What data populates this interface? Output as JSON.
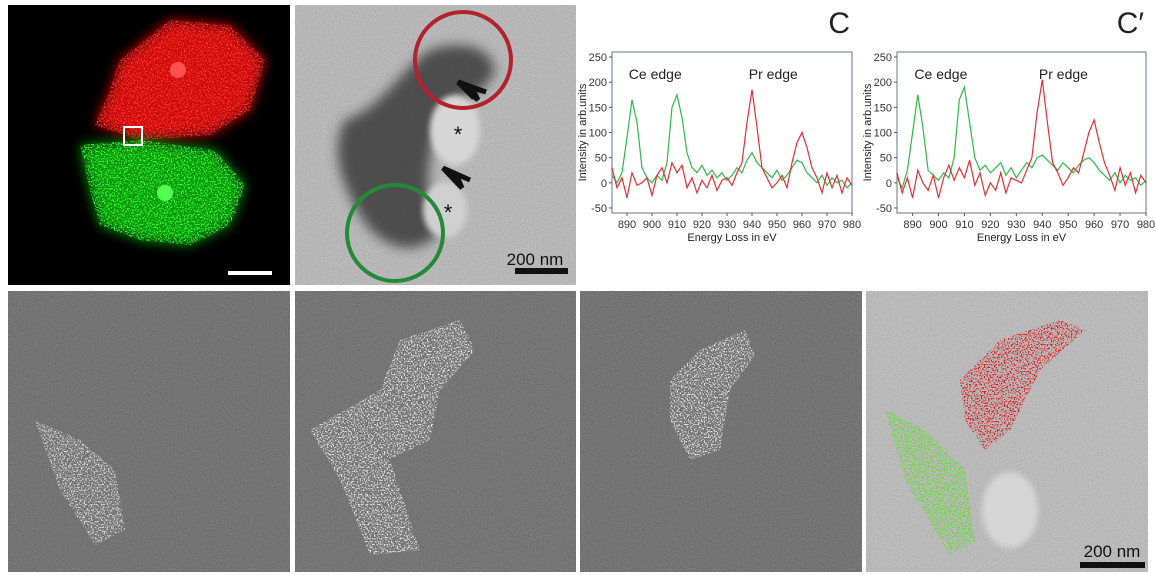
{
  "panels": {
    "em_asterisks": [
      "*",
      "*"
    ],
    "em_scale_bar": "200 nm",
    "overlay_scale_bar": "200 nm"
  },
  "chart_data": [
    {
      "type": "line",
      "panel_label": "C",
      "annotations": [
        "Ce edge",
        "Pr edge"
      ],
      "x_label": "Energy Loss in eV",
      "y_label": "Intensity in arb.units",
      "x": [
        884,
        886,
        888,
        890,
        892,
        894,
        896,
        898,
        900,
        902,
        904,
        906,
        908,
        910,
        912,
        914,
        916,
        918,
        920,
        922,
        924,
        926,
        928,
        930,
        932,
        934,
        936,
        938,
        940,
        942,
        944,
        946,
        948,
        950,
        952,
        954,
        956,
        958,
        960,
        962,
        964,
        966,
        968,
        970,
        972,
        974,
        976,
        978,
        980
      ],
      "series": [
        {
          "color": "#2fb84b",
          "values": [
            15,
            0,
            20,
            90,
            165,
            120,
            30,
            10,
            0,
            15,
            5,
            40,
            150,
            175,
            130,
            60,
            30,
            20,
            35,
            15,
            25,
            10,
            20,
            5,
            15,
            30,
            20,
            45,
            60,
            40,
            30,
            20,
            10,
            25,
            5,
            15,
            30,
            45,
            40,
            20,
            10,
            0,
            15,
            -5,
            10,
            0,
            5,
            -10,
            0
          ]
        },
        {
          "color": "#e0303a",
          "values": [
            30,
            -10,
            10,
            -30,
            20,
            -5,
            0,
            10,
            -25,
            15,
            30,
            0,
            40,
            20,
            35,
            -10,
            10,
            -20,
            5,
            -10,
            15,
            -15,
            5,
            10,
            -5,
            20,
            40,
            120,
            185,
            110,
            30,
            10,
            -10,
            0,
            15,
            -10,
            40,
            80,
            100,
            70,
            30,
            10,
            -20,
            20,
            -10,
            15,
            -20,
            10,
            -5
          ]
        }
      ],
      "xlim": [
        884,
        980
      ],
      "ylim": [
        -60,
        260
      ],
      "xticks": [
        890,
        900,
        910,
        920,
        930,
        940,
        950,
        960,
        970,
        980
      ],
      "yticks": [
        -50,
        0,
        50,
        100,
        150,
        200,
        250
      ]
    },
    {
      "type": "line",
      "panel_label": "C′",
      "annotations": [
        "Ce edge",
        "Pr edge"
      ],
      "x_label": "Energy Loss in eV",
      "y_label": "Intensity in arb.units",
      "x": [
        884,
        886,
        888,
        890,
        892,
        894,
        896,
        898,
        900,
        902,
        904,
        906,
        908,
        910,
        912,
        914,
        916,
        918,
        920,
        922,
        924,
        926,
        928,
        930,
        932,
        934,
        936,
        938,
        940,
        942,
        944,
        946,
        948,
        950,
        952,
        954,
        956,
        958,
        960,
        962,
        964,
        966,
        968,
        970,
        972,
        974,
        976,
        978,
        980
      ],
      "series": [
        {
          "color": "#2fb84b",
          "values": [
            10,
            -10,
            25,
            100,
            175,
            110,
            25,
            15,
            5,
            20,
            10,
            50,
            165,
            190,
            120,
            50,
            25,
            35,
            20,
            30,
            40,
            15,
            30,
            10,
            25,
            40,
            30,
            50,
            55,
            45,
            35,
            25,
            40,
            30,
            20,
            35,
            45,
            50,
            40,
            25,
            15,
            5,
            20,
            0,
            15,
            5,
            10,
            -5,
            5
          ]
        },
        {
          "color": "#e0303a",
          "values": [
            20,
            -20,
            10,
            -30,
            25,
            0,
            -15,
            15,
            -30,
            10,
            35,
            5,
            30,
            10,
            45,
            -5,
            20,
            -25,
            0,
            -15,
            20,
            -20,
            10,
            5,
            0,
            25,
            50,
            140,
            205,
            120,
            40,
            20,
            -5,
            10,
            30,
            20,
            60,
            100,
            125,
            80,
            40,
            15,
            -15,
            30,
            -5,
            20,
            -20,
            15,
            0
          ]
        }
      ],
      "xlim": [
        884,
        980
      ],
      "ylim": [
        -60,
        260
      ],
      "xticks": [
        890,
        900,
        910,
        920,
        930,
        940,
        950,
        960,
        970,
        980
      ],
      "yticks": [
        -50,
        0,
        50,
        100,
        150,
        200,
        250
      ]
    }
  ]
}
